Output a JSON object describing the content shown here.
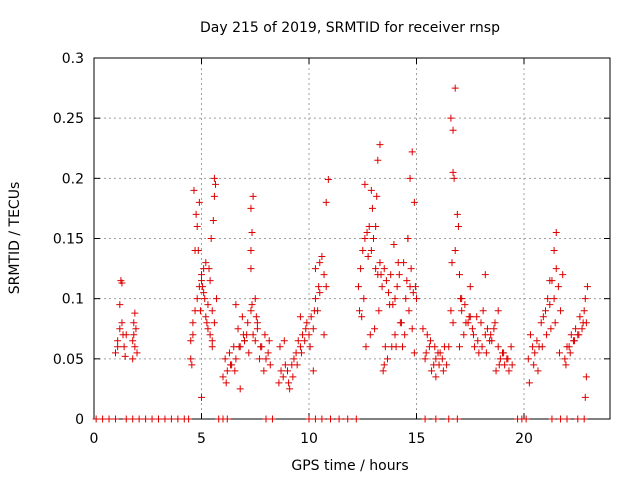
{
  "chart_data": {
    "type": "scatter",
    "title": "Day 215 of 2019, SRMTID for receiver rnsp",
    "xlabel": "GPS time / hours",
    "ylabel": "SRMTID / TECUs",
    "xlim": [
      0,
      24
    ],
    "ylim": [
      0,
      0.3
    ],
    "xticks": [
      0,
      5,
      10,
      15,
      20
    ],
    "xtick_labels": [
      "0",
      "5",
      "10",
      "15",
      "20"
    ],
    "yticks": [
      0,
      0.05,
      0.1,
      0.15,
      0.2,
      0.25,
      0.3
    ],
    "ytick_labels": [
      "0",
      "0.05",
      "0.1",
      "0.15",
      "0.2",
      "0.25",
      "0.3"
    ],
    "grid": true,
    "marker": "+",
    "color": "#dd0000",
    "series": [
      {
        "name": "SRMTID",
        "x": [
          1.0,
          1.1,
          1.2,
          1.3,
          1.4,
          1.5,
          1.2,
          1.3,
          1.25,
          1.1,
          1.35,
          1.45,
          1.8,
          1.9,
          1.85,
          1.95,
          1.9,
          1.8,
          2.0,
          1.85,
          4.5,
          4.5,
          4.6,
          4.55,
          4.6,
          4.7,
          4.8,
          4.9,
          5.0,
          5.1,
          5.2,
          5.3,
          5.4,
          5.5,
          4.7,
          4.8,
          4.9,
          5.0,
          5.1,
          5.2,
          5.3,
          5.4,
          5.5,
          4.65,
          4.75,
          4.85,
          4.95,
          5.05,
          5.15,
          5.25,
          5.35,
          5.45,
          5.55,
          5.6,
          5.6,
          5.65,
          5.7,
          5.6,
          5.5,
          5.0,
          6.0,
          6.2,
          6.4,
          6.6,
          6.8,
          7.0,
          7.2,
          7.4,
          7.6,
          7.8,
          8.0,
          8.2,
          6.1,
          6.3,
          6.5,
          6.7,
          6.9,
          7.1,
          7.3,
          7.5,
          7.7,
          7.9,
          8.1,
          6.15,
          6.35,
          6.55,
          6.75,
          6.95,
          7.15,
          7.35,
          7.55,
          7.75,
          7.95,
          8.15,
          7.3,
          7.35,
          7.3,
          7.4,
          7.3,
          7.5,
          7.6,
          6.8,
          6.6,
          7.0,
          8.6,
          8.8,
          9.0,
          9.2,
          9.4,
          9.6,
          9.8,
          10.0,
          10.2,
          10.4,
          8.7,
          8.9,
          9.1,
          9.3,
          9.5,
          9.7,
          9.9,
          10.1,
          10.3,
          10.5,
          8.65,
          8.85,
          9.05,
          9.25,
          9.45,
          9.65,
          9.85,
          10.05,
          10.25,
          10.45,
          10.3,
          10.5,
          10.6,
          10.7,
          10.8,
          10.8,
          10.9,
          10.7,
          10.2,
          9.6,
          12.3,
          12.4,
          12.5,
          12.6,
          12.7,
          12.8,
          12.9,
          13.0,
          13.1,
          13.2,
          13.3,
          13.4,
          13.5,
          13.6,
          13.7,
          13.8,
          13.9,
          14.0,
          14.1,
          14.2,
          14.3,
          14.4,
          14.5,
          14.6,
          14.7,
          14.8,
          14.9,
          15.0,
          12.35,
          12.55,
          12.75,
          12.95,
          13.15,
          13.35,
          13.55,
          13.75,
          13.95,
          14.15,
          14.35,
          14.55,
          14.75,
          14.95,
          12.45,
          12.65,
          12.85,
          13.05,
          13.25,
          13.45,
          13.65,
          13.85,
          14.05,
          14.25,
          14.45,
          14.65,
          14.85,
          13.2,
          13.3,
          12.9,
          14.7,
          14.8,
          14.9,
          14.6,
          14.0,
          13.5,
          12.6,
          13.1,
          15.4,
          15.6,
          15.8,
          16.0,
          16.2,
          16.4,
          15.5,
          15.7,
          15.9,
          16.1,
          16.3,
          15.45,
          15.65,
          15.85,
          16.05,
          16.25,
          15.3,
          15.9,
          16.5,
          16.7,
          16.8,
          16.6,
          16.7,
          16.75,
          16.65,
          16.8,
          16.9,
          16.95,
          17.0,
          17.1,
          16.6,
          16.7,
          17.0,
          17.2,
          17.4,
          17.6,
          17.8,
          18.0,
          18.2,
          18.4,
          18.6,
          18.8,
          19.0,
          19.2,
          19.4,
          17.1,
          17.3,
          17.5,
          17.7,
          17.9,
          18.1,
          18.3,
          18.5,
          18.7,
          18.9,
          19.1,
          19.3,
          17.05,
          17.25,
          17.45,
          17.65,
          17.85,
          18.05,
          18.25,
          18.45,
          18.65,
          18.85,
          19.05,
          19.25,
          19.45,
          17.5,
          18.2,
          18.8,
          20.2,
          20.4,
          20.6,
          20.8,
          21.0,
          21.2,
          21.4,
          21.6,
          21.8,
          20.3,
          20.5,
          20.7,
          20.9,
          21.1,
          21.3,
          21.5,
          21.7,
          20.25,
          20.45,
          20.65,
          20.85,
          21.05,
          21.25,
          21.45,
          21.65,
          21.4,
          21.5,
          21.2,
          21.9,
          22.1,
          22.3,
          22.5,
          22.7,
          22.9,
          22.0,
          22.2,
          22.4,
          22.6,
          22.8,
          21.95,
          22.15,
          22.35,
          22.55,
          22.75,
          22.85,
          22.95,
          22.9,
          22.85,
          0.1,
          0.4,
          0.7,
          1.0,
          1.5,
          1.8,
          2.1,
          2.4,
          2.7,
          3.0,
          3.3,
          3.6,
          3.9,
          4.2,
          4.4,
          5.8,
          6.0,
          6.2,
          8.0,
          8.3,
          10.0,
          10.3,
          10.6,
          11.0,
          11.4,
          11.8,
          12.2,
          15.4,
          15.9,
          16.5,
          16.9,
          19.7,
          19.9,
          20.1,
          21.3,
          21.7,
          22.0,
          22.5,
          22.8
        ],
        "y": [
          0.055,
          0.065,
          0.075,
          0.08,
          0.06,
          0.07,
          0.095,
          0.113,
          0.115,
          0.06,
          0.07,
          0.052,
          0.05,
          0.06,
          0.07,
          0.075,
          0.088,
          0.065,
          0.055,
          0.08,
          0.05,
          0.065,
          0.08,
          0.045,
          0.07,
          0.09,
          0.1,
          0.11,
          0.12,
          0.105,
          0.13,
          0.095,
          0.115,
          0.09,
          0.14,
          0.16,
          0.18,
          0.115,
          0.125,
          0.085,
          0.075,
          0.07,
          0.065,
          0.19,
          0.17,
          0.14,
          0.09,
          0.11,
          0.1,
          0.08,
          0.125,
          0.15,
          0.165,
          0.185,
          0.2,
          0.195,
          0.1,
          0.08,
          0.06,
          0.018,
          0.035,
          0.04,
          0.045,
          0.05,
          0.06,
          0.065,
          0.055,
          0.07,
          0.08,
          0.06,
          0.05,
          0.045,
          0.05,
          0.055,
          0.06,
          0.075,
          0.085,
          0.07,
          0.09,
          0.065,
          0.05,
          0.04,
          0.055,
          0.03,
          0.045,
          0.04,
          0.06,
          0.07,
          0.08,
          0.095,
          0.085,
          0.06,
          0.07,
          0.065,
          0.14,
          0.155,
          0.175,
          0.185,
          0.125,
          0.1,
          0.075,
          0.025,
          0.095,
          0.065,
          0.03,
          0.035,
          0.04,
          0.045,
          0.055,
          0.06,
          0.065,
          0.07,
          0.075,
          0.09,
          0.04,
          0.045,
          0.025,
          0.05,
          0.065,
          0.07,
          0.08,
          0.085,
          0.1,
          0.105,
          0.06,
          0.065,
          0.03,
          0.035,
          0.045,
          0.055,
          0.075,
          0.06,
          0.09,
          0.11,
          0.125,
          0.13,
          0.135,
          0.12,
          0.11,
          0.18,
          0.199,
          0.07,
          0.04,
          0.085,
          0.11,
          0.125,
          0.14,
          0.15,
          0.155,
          0.16,
          0.14,
          0.15,
          0.125,
          0.12,
          0.13,
          0.11,
          0.125,
          0.115,
          0.105,
          0.12,
          0.095,
          0.1,
          0.11,
          0.12,
          0.08,
          0.13,
          0.1,
          0.15,
          0.11,
          0.075,
          0.055,
          0.1,
          0.09,
          0.1,
          0.135,
          0.175,
          0.185,
          0.12,
          0.06,
          0.095,
          0.145,
          0.13,
          0.06,
          0.115,
          0.125,
          0.11,
          0.085,
          0.06,
          0.07,
          0.075,
          0.09,
          0.04,
          0.05,
          0.06,
          0.06,
          0.08,
          0.07,
          0.09,
          0.105,
          0.215,
          0.228,
          0.19,
          0.2,
          0.222,
          0.18,
          0.15,
          0.07,
          0.045,
          0.195,
          0.16,
          0.05,
          0.06,
          0.045,
          0.055,
          0.05,
          0.045,
          0.07,
          0.04,
          0.05,
          0.055,
          0.06,
          0.055,
          0.065,
          0.06,
          0.045,
          0.04,
          0.075,
          0.035,
          0.06,
          0.24,
          0.275,
          0.25,
          0.205,
          0.2,
          0.13,
          0.14,
          0.17,
          0.16,
          0.12,
          0.1,
          0.09,
          0.08,
          0.06,
          0.07,
          0.08,
          0.075,
          0.085,
          0.08,
          0.07,
          0.065,
          0.075,
          0.06,
          0.055,
          0.05,
          0.06,
          0.09,
          0.08,
          0.085,
          0.06,
          0.055,
          0.09,
          0.075,
          0.065,
          0.04,
          0.05,
          0.045,
          0.04,
          0.1,
          0.095,
          0.085,
          0.07,
          0.065,
          0.06,
          0.055,
          0.07,
          0.08,
          0.045,
          0.055,
          0.05,
          0.045,
          0.11,
          0.12,
          0.09,
          0.05,
          0.06,
          0.065,
          0.08,
          0.09,
          0.095,
          0.1,
          0.11,
          0.12,
          0.07,
          0.055,
          0.06,
          0.085,
          0.1,
          0.115,
          0.125,
          0.09,
          0.03,
          0.045,
          0.04,
          0.06,
          0.07,
          0.075,
          0.08,
          0.055,
          0.14,
          0.155,
          0.115,
          0.05,
          0.06,
          0.065,
          0.07,
          0.075,
          0.08,
          0.06,
          0.07,
          0.075,
          0.085,
          0.09,
          0.045,
          0.055,
          0.065,
          0.07,
          0.08,
          0.1,
          0.11,
          0.035,
          0.018,
          0,
          0,
          0,
          0,
          0,
          0,
          0,
          0,
          0,
          0,
          0,
          0,
          0,
          0,
          0,
          0,
          0,
          0,
          0,
          0,
          0,
          0,
          0,
          0,
          0,
          0,
          0,
          0,
          0,
          0,
          0,
          0,
          0,
          0,
          0,
          0,
          0,
          0,
          0
        ]
      }
    ]
  }
}
